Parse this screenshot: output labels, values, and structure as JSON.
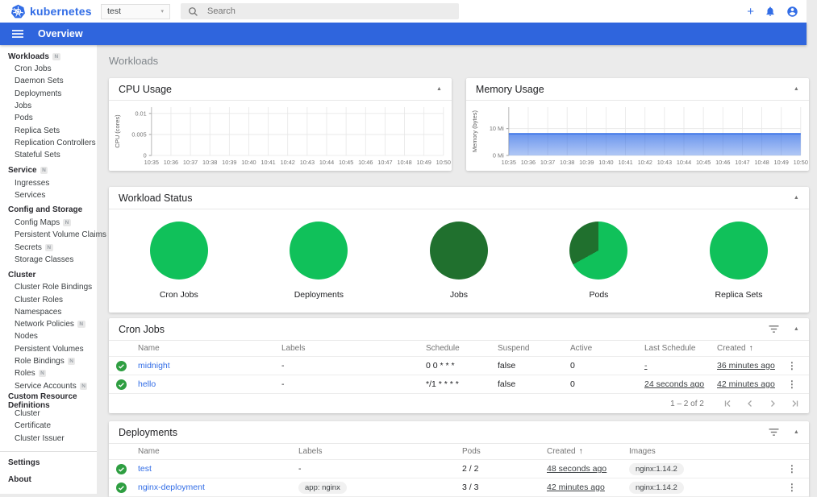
{
  "header": {
    "brand": "kubernetes",
    "namespace_value": "test",
    "search_placeholder": "Search",
    "brand_color": "#326de6"
  },
  "appbar": {
    "title": "Overview"
  },
  "sidebar": {
    "sections": [
      {
        "label": "Workloads",
        "badge": "N",
        "items": [
          {
            "label": "Cron Jobs"
          },
          {
            "label": "Daemon Sets"
          },
          {
            "label": "Deployments"
          },
          {
            "label": "Jobs"
          },
          {
            "label": "Pods"
          },
          {
            "label": "Replica Sets"
          },
          {
            "label": "Replication Controllers"
          },
          {
            "label": "Stateful Sets"
          }
        ]
      },
      {
        "label": "Service",
        "badge": "N",
        "items": [
          {
            "label": "Ingresses"
          },
          {
            "label": "Services"
          }
        ]
      },
      {
        "label": "Config and Storage",
        "items": [
          {
            "label": "Config Maps",
            "badge": "N"
          },
          {
            "label": "Persistent Volume Claims",
            "badge": "N"
          },
          {
            "label": "Secrets",
            "badge": "N"
          },
          {
            "label": "Storage Classes"
          }
        ]
      },
      {
        "label": "Cluster",
        "items": [
          {
            "label": "Cluster Role Bindings"
          },
          {
            "label": "Cluster Roles"
          },
          {
            "label": "Namespaces"
          },
          {
            "label": "Network Policies",
            "badge": "N"
          },
          {
            "label": "Nodes"
          },
          {
            "label": "Persistent Volumes"
          },
          {
            "label": "Role Bindings",
            "badge": "N"
          },
          {
            "label": "Roles",
            "badge": "N"
          },
          {
            "label": "Service Accounts",
            "badge": "N"
          }
        ]
      },
      {
        "label": "Custom Resource Definitions",
        "items": [
          {
            "label": "Cluster"
          },
          {
            "label": "Certificate"
          },
          {
            "label": "Cluster Issuer"
          }
        ]
      }
    ],
    "footer_items": [
      {
        "label": "Settings"
      },
      {
        "label": "About"
      }
    ]
  },
  "page": {
    "breadcrumb": "Workloads"
  },
  "chart_data": [
    {
      "type": "line",
      "title": "CPU Usage",
      "ylabel": "CPU (cores)",
      "x": [
        "10:35",
        "10:36",
        "10:37",
        "10:38",
        "10:39",
        "10:40",
        "10:41",
        "10:42",
        "10:43",
        "10:44",
        "10:45",
        "10:46",
        "10:47",
        "10:48",
        "10:49",
        "10:50"
      ],
      "yticks": [
        {
          "v": 0,
          "label": "0"
        },
        {
          "v": 0.005,
          "label": "0.005"
        },
        {
          "v": 0.01,
          "label": "0.01"
        }
      ],
      "ylim": [
        0,
        0.0115
      ],
      "series": []
    },
    {
      "type": "area",
      "title": "Memory Usage",
      "ylabel": "Memory (bytes)",
      "x": [
        "10:35",
        "10:36",
        "10:37",
        "10:38",
        "10:39",
        "10:40",
        "10:41",
        "10:42",
        "10:43",
        "10:44",
        "10:45",
        "10:46",
        "10:47",
        "10:48",
        "10:49",
        "10:50"
      ],
      "yticks": [
        {
          "v": 0,
          "label": "0 Mi"
        },
        {
          "v": 10,
          "label": "10 Mi"
        }
      ],
      "ylim": [
        0,
        18
      ],
      "area_color": "#326de6",
      "series": [
        {
          "name": "memory",
          "values": [
            8.1,
            8.1,
            8.1,
            8.1,
            8.1,
            8.1,
            8.1,
            8.1,
            8.1,
            8.1,
            8.1,
            8.1,
            8.1,
            8.1,
            8.1,
            8.1
          ]
        }
      ]
    }
  ],
  "workload_status": {
    "title": "Workload Status",
    "colors": {
      "running_green": "#10c15a",
      "succeeded_dark_green": "#20702e"
    },
    "pies": [
      {
        "label": "Cron Jobs",
        "segments": [
          {
            "color": "#10c15a",
            "pct": 100
          }
        ]
      },
      {
        "label": "Deployments",
        "segments": [
          {
            "color": "#10c15a",
            "pct": 100
          }
        ]
      },
      {
        "label": "Jobs",
        "segments": [
          {
            "color": "#20702e",
            "pct": 100
          }
        ]
      },
      {
        "label": "Pods",
        "segments": [
          {
            "color": "#10c15a",
            "pct": 67
          },
          {
            "color": "#20702e",
            "pct": 33
          }
        ]
      },
      {
        "label": "Replica Sets",
        "segments": [
          {
            "color": "#10c15a",
            "pct": 100
          }
        ]
      }
    ]
  },
  "cron_jobs": {
    "title": "Cron Jobs",
    "columns": [
      "Name",
      "Labels",
      "Schedule",
      "Suspend",
      "Active",
      "Last Schedule",
      "Created"
    ],
    "sorted_column": "Created",
    "rows": [
      {
        "status": "ok",
        "name": "midnight",
        "labels": "-",
        "schedule": "0 0 * * *",
        "suspend": "false",
        "active": "0",
        "last_schedule": "-",
        "created": "36 minutes ago"
      },
      {
        "status": "ok",
        "name": "hello",
        "labels": "-",
        "schedule": "*/1 * * * *",
        "suspend": "false",
        "active": "0",
        "last_schedule": "24 seconds ago",
        "created": "42 minutes ago"
      }
    ],
    "pagination": {
      "range": "1 – 2 of 2"
    }
  },
  "deployments": {
    "title": "Deployments",
    "columns": [
      "Name",
      "Labels",
      "Pods",
      "Created",
      "Images"
    ],
    "sorted_column": "Created",
    "rows": [
      {
        "status": "ok",
        "name": "test",
        "labels": "-",
        "labels_chip": null,
        "pods": "2 / 2",
        "created": "48 seconds ago",
        "images": [
          "nginx:1.14.2"
        ]
      },
      {
        "status": "ok",
        "name": "nginx-deployment",
        "labels": null,
        "labels_chip": "app: nginx",
        "pods": "3 / 3",
        "created": "42 minutes ago",
        "images": [
          "nginx:1.14.2"
        ]
      }
    ]
  }
}
